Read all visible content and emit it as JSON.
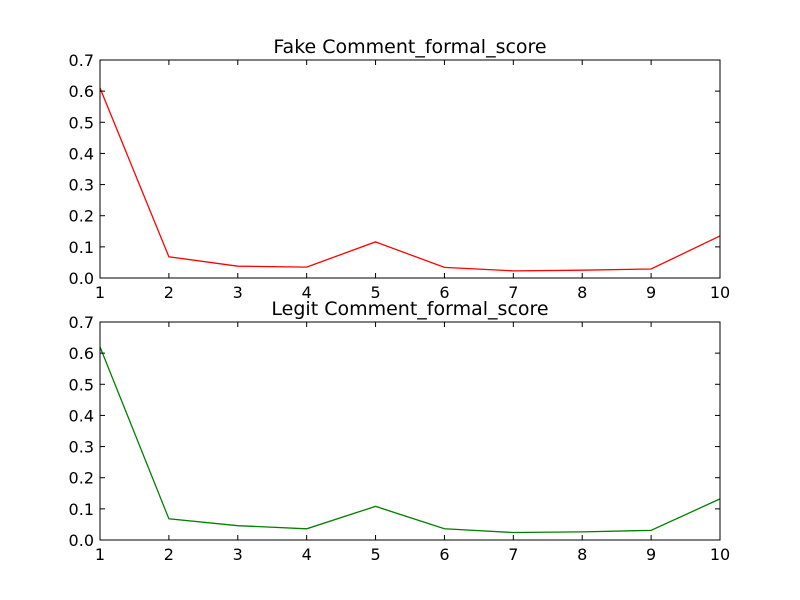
{
  "chart_data": [
    {
      "type": "line",
      "title": "Fake Comment_formal_score",
      "xlabel": "",
      "ylabel": "",
      "x": [
        1,
        2,
        3,
        4,
        5,
        6,
        7,
        8,
        9,
        10
      ],
      "series": [
        {
          "values": [
            0.61,
            0.068,
            0.038,
            0.035,
            0.116,
            0.034,
            0.023,
            0.025,
            0.029,
            0.135
          ],
          "color": "#ff0000"
        }
      ],
      "xlim": [
        1,
        10
      ],
      "ylim": [
        0,
        0.7
      ],
      "xticks": [
        "1",
        "2",
        "3",
        "4",
        "5",
        "6",
        "7",
        "8",
        "9",
        "10"
      ],
      "yticks": [
        "0.0",
        "0.1",
        "0.2",
        "0.3",
        "0.4",
        "0.5",
        "0.6",
        "0.7"
      ],
      "grid": false
    },
    {
      "type": "line",
      "title": "Legit Comment_formal_score",
      "xlabel": "",
      "ylabel": "",
      "x": [
        1,
        2,
        3,
        4,
        5,
        6,
        7,
        8,
        9,
        10
      ],
      "series": [
        {
          "values": [
            0.62,
            0.068,
            0.046,
            0.036,
            0.108,
            0.036,
            0.024,
            0.026,
            0.031,
            0.132
          ],
          "color": "#008000"
        }
      ],
      "xlim": [
        1,
        10
      ],
      "ylim": [
        0,
        0.7
      ],
      "xticks": [
        "1",
        "2",
        "3",
        "4",
        "5",
        "6",
        "7",
        "8",
        "9",
        "10"
      ],
      "yticks": [
        "0.0",
        "0.1",
        "0.2",
        "0.3",
        "0.4",
        "0.5",
        "0.6",
        "0.7"
      ],
      "grid": false
    }
  ]
}
